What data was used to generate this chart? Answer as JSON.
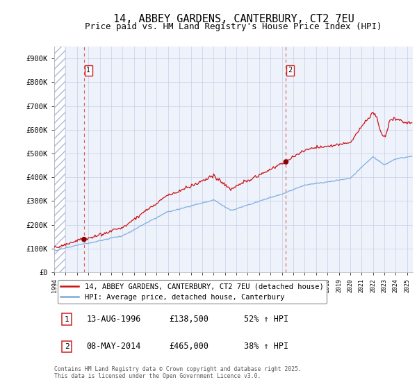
{
  "title": "14, ABBEY GARDENS, CANTERBURY, CT2 7EU",
  "subtitle": "Price paid vs. HM Land Registry's House Price Index (HPI)",
  "ylim": [
    0,
    950000
  ],
  "yticks": [
    0,
    100000,
    200000,
    300000,
    400000,
    500000,
    600000,
    700000,
    800000,
    900000
  ],
  "ytick_labels": [
    "£0",
    "£100K",
    "£200K",
    "£300K",
    "£400K",
    "£500K",
    "£600K",
    "£700K",
    "£800K",
    "£900K"
  ],
  "hpi_color": "#7aaadd",
  "price_color": "#cc1111",
  "marker_color": "#880000",
  "sale1_year": 1996.617,
  "sale1_price": 138500,
  "sale2_year": 2014.354,
  "sale2_price": 465000,
  "legend_line1": "14, ABBEY GARDENS, CANTERBURY, CT2 7EU (detached house)",
  "legend_line2": "HPI: Average price, detached house, Canterbury",
  "table_row1": [
    "1",
    "13-AUG-1996",
    "£138,500",
    "52% ↑ HPI"
  ],
  "table_row2": [
    "2",
    "08-MAY-2014",
    "£465,000",
    "38% ↑ HPI"
  ],
  "footnote": "Contains HM Land Registry data © Crown copyright and database right 2025.\nThis data is licensed under the Open Government Licence v3.0.",
  "background_color": "#ffffff",
  "plot_bg_color": "#edf2fb",
  "grid_color": "#c8cfe8",
  "xmin": 1994,
  "xmax": 2025.5,
  "title_fontsize": 11,
  "subtitle_fontsize": 9
}
